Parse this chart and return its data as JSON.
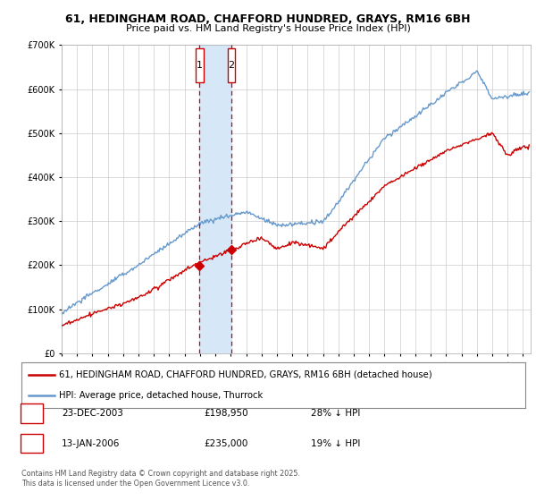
{
  "title_line1": "61, HEDINGHAM ROAD, CHAFFORD HUNDRED, GRAYS, RM16 6BH",
  "title_line2": "Price paid vs. HM Land Registry's House Price Index (HPI)",
  "legend_label_red": "61, HEDINGHAM ROAD, CHAFFORD HUNDRED, GRAYS, RM16 6BH (detached house)",
  "legend_label_blue": "HPI: Average price, detached house, Thurrock",
  "footnote": "Contains HM Land Registry data © Crown copyright and database right 2025.\nThis data is licensed under the Open Government Licence v3.0.",
  "transaction1_date": "23-DEC-2003",
  "transaction1_price": "£198,950",
  "transaction1_hpi": "28% ↓ HPI",
  "transaction1_x": 2003.97,
  "transaction1_y": 198950,
  "transaction2_date": "13-JAN-2006",
  "transaction2_price": "£235,000",
  "transaction2_hpi": "19% ↓ HPI",
  "transaction2_x": 2006.04,
  "transaction2_y": 235000,
  "red_color": "#cc0000",
  "blue_color": "#6699cc",
  "vline1_x": 2003.97,
  "vline2_x": 2006.04,
  "highlight_color": "#d6e8f7",
  "background_color": "#ffffff",
  "grid_color": "#cccccc",
  "ylim_max": 700000,
  "ylim_min": 0,
  "xmin": 1995,
  "xmax": 2025.5,
  "yticks": [
    0,
    100000,
    200000,
    300000,
    400000,
    500000,
    600000,
    700000
  ]
}
